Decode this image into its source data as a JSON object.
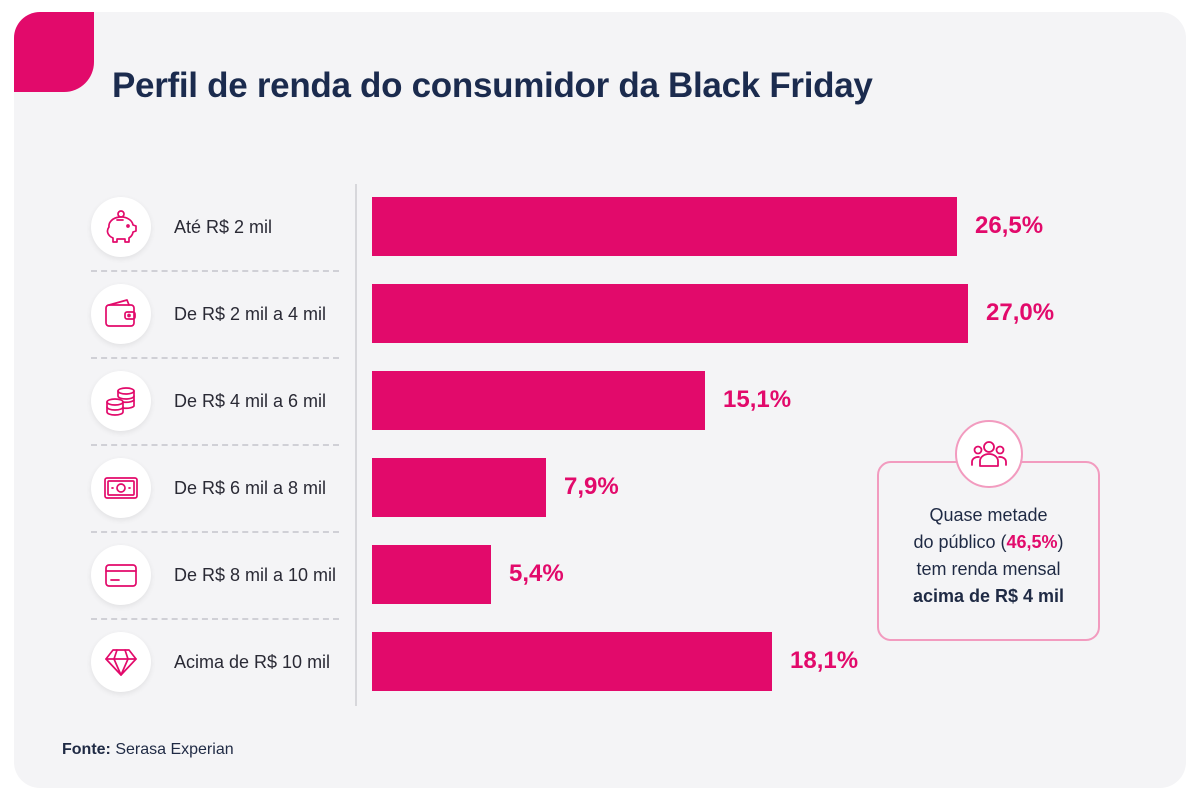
{
  "title": "Perfil de renda do consumidor da Black Friday",
  "accent_color": "#e20a6b",
  "title_color": "#1b2b4e",
  "chart_data": {
    "type": "bar",
    "orientation": "horizontal",
    "categories": [
      "Até R$ 2 mil",
      "De R$ 2 mil a 4 mil",
      "De R$ 4 mil a 6 mil",
      "De R$ 6 mil a 8 mil",
      "De R$ 8 mil a 10 mil",
      "Acima de R$ 10 mil"
    ],
    "values": [
      26.5,
      27.0,
      15.1,
      7.9,
      5.4,
      18.1
    ],
    "value_labels": [
      "26,5%",
      "27,0%",
      "15,1%",
      "7,9%",
      "5,4%",
      "18,1%"
    ],
    "icons": [
      "piggy-bank-icon",
      "wallet-icon",
      "coins-icon",
      "banknote-icon",
      "credit-card-icon",
      "diamond-icon"
    ],
    "xlim": [
      0,
      27.0
    ],
    "grid": false,
    "legend": "none"
  },
  "callout": {
    "icon": "people-icon",
    "line1": "Quase metade",
    "line2_pre": "do público (",
    "line2_pct": "46,5%",
    "line2_post": ")",
    "line3": "tem renda mensal",
    "line4": "acima de R$ 4 mil"
  },
  "source": {
    "label": "Fonte:",
    "text": " Serasa Experian"
  }
}
